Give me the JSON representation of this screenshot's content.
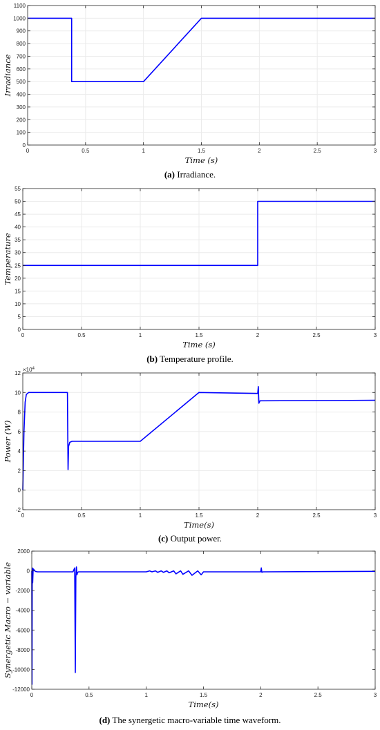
{
  "colors": {
    "series": "#0000ff",
    "axis": "#262626",
    "grid": "#ebebeb"
  },
  "chart_data": [
    {
      "type": "line",
      "caption_tag": "(a)",
      "caption_text": "Irradiance.",
      "xlabel": "Time (s)",
      "ylabel": "Irradiance",
      "xlim": [
        0,
        3
      ],
      "ylim": [
        0,
        1100
      ],
      "xticks": [
        0,
        0.5,
        1,
        1.5,
        2,
        2.5,
        3
      ],
      "yticks": [
        0,
        100,
        200,
        300,
        400,
        500,
        600,
        700,
        800,
        900,
        1000,
        1100
      ],
      "xtick_labels": [
        "0",
        "0.5",
        "1",
        "1.5",
        "2",
        "2.5",
        "3"
      ],
      "ytick_labels": [
        "0",
        "100",
        "200",
        "300",
        "400",
        "500",
        "600",
        "700",
        "800",
        "900",
        "1000",
        "1100"
      ],
      "grid": true,
      "series": [
        {
          "x": [
            0,
            0.38,
            0.38,
            1.0,
            1.5,
            3.0
          ],
          "y": [
            1000,
            1000,
            500,
            500,
            1000,
            1000
          ]
        }
      ]
    },
    {
      "type": "line",
      "caption_tag": "(b)",
      "caption_text": "Temperature profile.",
      "xlabel": "Time (s)",
      "ylabel": "Temperature",
      "xlim": [
        0,
        3
      ],
      "ylim": [
        0,
        55
      ],
      "xticks": [
        0,
        0.5,
        1,
        1.5,
        2,
        2.5,
        3
      ],
      "yticks": [
        0,
        5,
        10,
        15,
        20,
        25,
        30,
        35,
        40,
        45,
        50,
        55
      ],
      "xtick_labels": [
        "0",
        "0.5",
        "1",
        "1.5",
        "2",
        "2.5",
        "3"
      ],
      "ytick_labels": [
        "0",
        "5",
        "10",
        "15",
        "20",
        "25",
        "30",
        "35",
        "40",
        "45",
        "50",
        "55"
      ],
      "grid": true,
      "series": [
        {
          "x": [
            0,
            2.0,
            2.0,
            3.0
          ],
          "y": [
            25,
            25,
            50,
            50
          ]
        }
      ]
    },
    {
      "type": "line",
      "caption_tag": "(c)",
      "caption_text": "Output power.",
      "xlabel": "Time(s)",
      "ylabel": "Power (W)",
      "multiplier": "×10",
      "multiplier_exp": "4",
      "xlim": [
        0,
        3
      ],
      "ylim": [
        -2,
        12
      ],
      "xticks": [
        0,
        0.5,
        1,
        1.5,
        2,
        2.5,
        3
      ],
      "yticks": [
        -2,
        0,
        2,
        4,
        6,
        8,
        10,
        12
      ],
      "xtick_labels": [
        "0",
        "0.5",
        "1",
        "1.5",
        "2",
        "2.5",
        "3"
      ],
      "ytick_labels": [
        "-2",
        "0",
        "2",
        "4",
        "6",
        "8",
        "10",
        "12"
      ],
      "grid": true,
      "series": [
        {
          "x": [
            0,
            0.01,
            0.02,
            0.03,
            0.05,
            0.36,
            0.38,
            0.385,
            0.39,
            0.4,
            0.42,
            1.0,
            1.5,
            2.0,
            2.005,
            2.01,
            2.02,
            3.0
          ],
          "y": [
            0,
            6,
            9,
            9.8,
            10,
            10,
            10,
            2.1,
            4.5,
            4.9,
            5,
            5,
            10,
            9.9,
            10.6,
            8.9,
            9.15,
            9.2
          ]
        }
      ]
    },
    {
      "type": "line",
      "caption_tag": "(d)",
      "caption_text": "The synergetic macro-variable time waveform.",
      "xlabel": "Time(s)",
      "ylabel": "Synergetic Macro − variable",
      "xlim": [
        0,
        3
      ],
      "ylim": [
        -12000,
        2000
      ],
      "xticks": [
        0,
        0.5,
        1,
        1.5,
        2,
        2.5,
        3
      ],
      "yticks": [
        -12000,
        -10000,
        -8000,
        -6000,
        -4000,
        -2000,
        0,
        2000
      ],
      "xtick_labels": [
        "0",
        "0.5",
        "1",
        "1.5",
        "2",
        "2.5",
        "3"
      ],
      "ytick_labels": [
        "-12000",
        "-10000",
        "-8000",
        "-6000",
        "-4000",
        "-2000",
        "0",
        "2000"
      ],
      "grid": false,
      "series": [
        {
          "x": [
            0,
            0.002,
            0.004,
            0.008,
            0.012,
            0.02,
            0.03,
            0.05,
            0.36,
            0.375,
            0.38,
            0.385,
            0.39,
            0.395,
            0.4,
            0.41,
            0.42,
            1.0,
            1.03,
            1.05,
            1.08,
            1.1,
            1.13,
            1.15,
            1.18,
            1.2,
            1.24,
            1.26,
            1.3,
            1.32,
            1.37,
            1.4,
            1.45,
            1.48,
            1.5,
            2.0,
            2.005,
            2.01,
            2.02,
            3.0
          ],
          "y": [
            0,
            -11500,
            300,
            -1200,
            200,
            100,
            -50,
            -100,
            -100,
            300,
            -10300,
            -600,
            400,
            -400,
            -150,
            -100,
            -100,
            -100,
            0,
            -100,
            0,
            -150,
            0,
            -150,
            0,
            -200,
            0,
            -300,
            0,
            -350,
            0,
            -450,
            0,
            -400,
            -100,
            -100,
            300,
            -150,
            -100,
            -50
          ]
        }
      ]
    }
  ]
}
